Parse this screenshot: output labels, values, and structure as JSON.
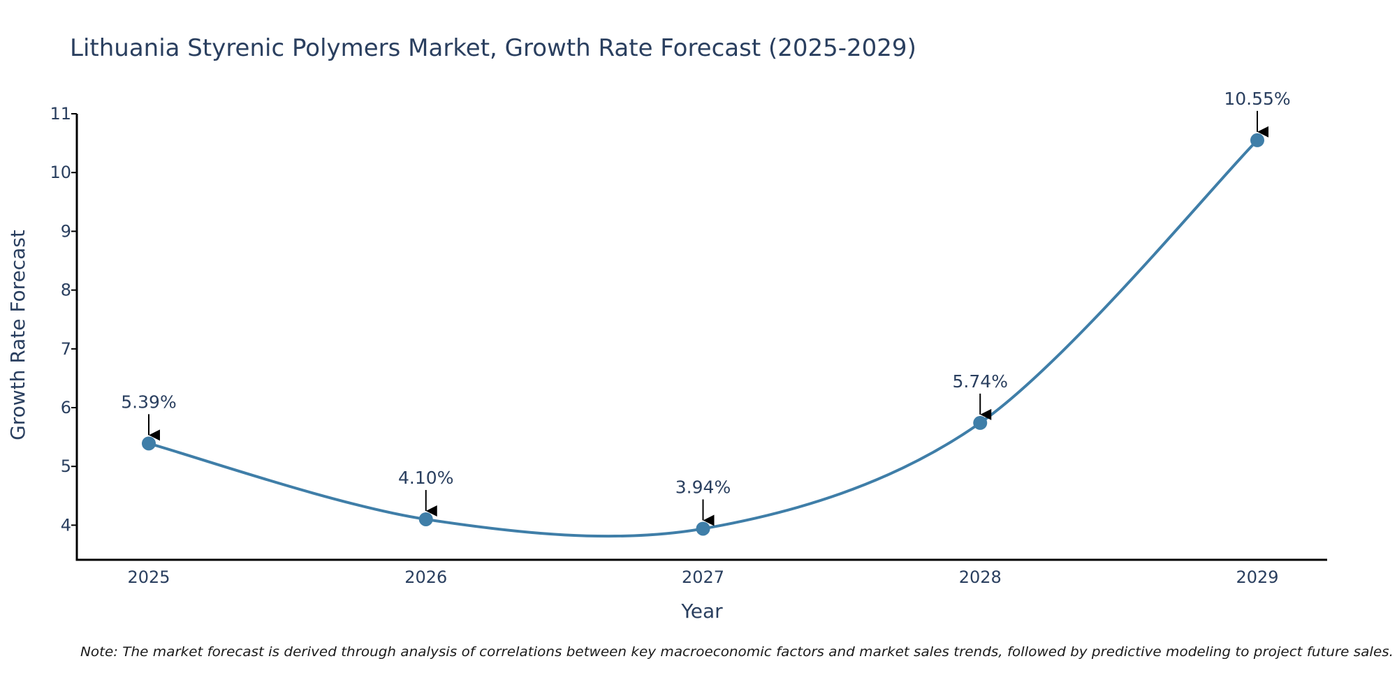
{
  "chart_data": {
    "type": "line",
    "title": "Lithuania Styrenic Polymers Market, Growth Rate Forecast (2025-2029)",
    "xlabel": "Year",
    "ylabel": "Growth Rate Forecast",
    "categories": [
      "2025",
      "2026",
      "2027",
      "2028",
      "2029"
    ],
    "values": [
      5.39,
      4.1,
      3.94,
      5.74,
      10.55
    ],
    "data_labels": [
      "5.39%",
      "4.10%",
      "3.94%",
      "5.74%",
      "10.55%"
    ],
    "y_ticks": [
      4,
      5,
      6,
      7,
      8,
      9,
      10,
      11
    ],
    "ylim": [
      3.42,
      11
    ],
    "grid": false,
    "line_shape": "spline",
    "colors": {
      "line": "#3f7ea8",
      "marker": "#3f7ea8",
      "axis": "#000000",
      "arrow": "#000000",
      "text": "#2a3f5f"
    },
    "note": "Note: The market forecast is derived through analysis of correlations between key macroeconomic factors and market sales trends, followed by predictive modeling to project future sales."
  }
}
